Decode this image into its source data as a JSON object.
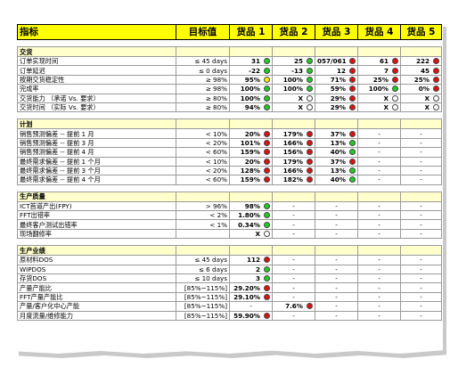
{
  "header": {
    "indicator": "指标",
    "target": "目标值",
    "goods": [
      "货品 1",
      "货品 2",
      "货品 3",
      "货品 4",
      "货品 5"
    ]
  },
  "sections": [
    {
      "title": "交货",
      "rows": [
        {
          "label": "订单实现时间",
          "target": "≤ 45 days",
          "cells": [
            {
              "v": "31",
              "s": "green"
            },
            {
              "v": "25",
              "s": "green"
            },
            {
              "v": "057/061",
              "s": "red"
            },
            {
              "v": "61",
              "s": "red"
            },
            {
              "v": "222",
              "s": "red"
            }
          ]
        },
        {
          "label": "订单延迟",
          "target": "≤ 0 days",
          "cells": [
            {
              "v": "-22",
              "s": "green"
            },
            {
              "v": "-13",
              "s": "green"
            },
            {
              "v": "12",
              "s": "red"
            },
            {
              "v": "7",
              "s": "red"
            },
            {
              "v": "45",
              "s": "red"
            }
          ]
        },
        {
          "label": "按期交货稳定性",
          "target": "≥ 98%",
          "cells": [
            {
              "v": "95%",
              "s": "yellow"
            },
            {
              "v": "100%",
              "s": "green"
            },
            {
              "v": "71%",
              "s": "red"
            },
            {
              "v": "25%",
              "s": "red"
            },
            {
              "v": "25%",
              "s": "red"
            }
          ]
        },
        {
          "label": "完成率",
          "target": "≥ 98%",
          "cells": [
            {
              "v": "100%",
              "s": "green"
            },
            {
              "v": "100%",
              "s": "green"
            },
            {
              "v": "59%",
              "s": "red"
            },
            {
              "v": "100%",
              "s": "green"
            },
            {
              "v": "0%",
              "s": "red"
            }
          ]
        },
        {
          "label": "交货能力 （承诺 Vs. 要求）",
          "target": "≥ 80%",
          "cells": [
            {
              "v": "100%",
              "s": "green"
            },
            {
              "v": "X",
              "s": "empty"
            },
            {
              "v": "29%",
              "s": "red"
            },
            {
              "v": "X",
              "s": "empty"
            },
            {
              "v": "X",
              "s": "empty"
            }
          ]
        },
        {
          "label": "交货时间 （实际 Vs. 要求）",
          "target": "≥ 80%",
          "cells": [
            {
              "v": "94%",
              "s": "green"
            },
            {
              "v": "X",
              "s": "empty"
            },
            {
              "v": "29%",
              "s": "red"
            },
            {
              "v": "X",
              "s": "empty"
            },
            {
              "v": "X",
              "s": "empty"
            }
          ]
        }
      ]
    },
    {
      "title": "计划",
      "rows": [
        {
          "label": "销售预测偏差 -- 提前 1 月",
          "target": "< 10%",
          "cells": [
            {
              "v": "20%",
              "s": "red"
            },
            {
              "v": "179%",
              "s": "red"
            },
            {
              "v": "37%",
              "s": "red"
            },
            {
              "v": "-",
              "s": ""
            },
            {
              "v": "-",
              "s": ""
            }
          ]
        },
        {
          "label": "销售预测偏差 -- 提前 3 月",
          "target": "< 20%",
          "cells": [
            {
              "v": "101%",
              "s": "red"
            },
            {
              "v": "166%",
              "s": "red"
            },
            {
              "v": "13%",
              "s": "green"
            },
            {
              "v": "-",
              "s": ""
            },
            {
              "v": "-",
              "s": ""
            }
          ]
        },
        {
          "label": "销售预测偏差 -- 提前 4 月",
          "target": "< 60%",
          "cells": [
            {
              "v": "159%",
              "s": "red"
            },
            {
              "v": "156%",
              "s": "red"
            },
            {
              "v": "40%",
              "s": "green"
            },
            {
              "v": "-",
              "s": ""
            },
            {
              "v": "-",
              "s": ""
            }
          ]
        },
        {
          "label": "最终需求偏差 -- 提前 1 个月",
          "target": "< 10%",
          "cells": [
            {
              "v": "20%",
              "s": "red"
            },
            {
              "v": "179%",
              "s": "red"
            },
            {
              "v": "37%",
              "s": "red"
            },
            {
              "v": "-",
              "s": ""
            },
            {
              "v": "-",
              "s": ""
            }
          ]
        },
        {
          "label": "最终需求偏差 -- 提前 3 个月",
          "target": "< 20%",
          "cells": [
            {
              "v": "128%",
              "s": "red"
            },
            {
              "v": "166%",
              "s": "red"
            },
            {
              "v": "13%",
              "s": "green"
            },
            {
              "v": "-",
              "s": ""
            },
            {
              "v": "-",
              "s": ""
            }
          ]
        },
        {
          "label": "最终需求偏差 -- 提前 4 个月",
          "target": "< 60%",
          "cells": [
            {
              "v": "159%",
              "s": "red"
            },
            {
              "v": "182%",
              "s": "red"
            },
            {
              "v": "40%",
              "s": "green"
            },
            {
              "v": "-",
              "s": ""
            },
            {
              "v": "-",
              "s": ""
            }
          ]
        }
      ]
    },
    {
      "title": "生产质量",
      "rows": [
        {
          "label": "ICT首道产出(FPY)",
          "target": "> 96%",
          "cells": [
            {
              "v": "98%",
              "s": "green"
            },
            {
              "v": "-",
              "s": ""
            },
            {
              "v": "-",
              "s": ""
            },
            {
              "v": "-",
              "s": ""
            },
            {
              "v": "-",
              "s": ""
            }
          ]
        },
        {
          "label": "FFT出错率",
          "target": "< 2%",
          "cells": [
            {
              "v": "1.80%",
              "s": "green"
            },
            {
              "v": "-",
              "s": ""
            },
            {
              "v": "-",
              "s": ""
            },
            {
              "v": "-",
              "s": ""
            },
            {
              "v": "-",
              "s": ""
            }
          ]
        },
        {
          "label": "最终客户测试出错率",
          "target": "< 1%",
          "cells": [
            {
              "v": "0.34%",
              "s": "green"
            },
            {
              "v": "-",
              "s": ""
            },
            {
              "v": "-",
              "s": ""
            },
            {
              "v": "-",
              "s": ""
            },
            {
              "v": "-",
              "s": ""
            }
          ]
        },
        {
          "label": "现场翻修率",
          "target": "",
          "cells": [
            {
              "v": "X",
              "s": "empty"
            },
            {
              "v": "-",
              "s": ""
            },
            {
              "v": "-",
              "s": ""
            },
            {
              "v": "-",
              "s": ""
            },
            {
              "v": "-",
              "s": ""
            }
          ]
        }
      ]
    },
    {
      "title": "生产业绩",
      "rows": [
        {
          "label": "原材料DOS",
          "target": "≤ 45 days",
          "cells": [
            {
              "v": "112",
              "s": "red"
            },
            {
              "v": "-",
              "s": ""
            },
            {
              "v": "-",
              "s": ""
            },
            {
              "v": "-",
              "s": ""
            },
            {
              "v": "-",
              "s": ""
            }
          ]
        },
        {
          "label": "WIPDOS",
          "target": "≤ 6 days",
          "cells": [
            {
              "v": "2",
              "s": "green"
            },
            {
              "v": "-",
              "s": ""
            },
            {
              "v": "-",
              "s": ""
            },
            {
              "v": "-",
              "s": ""
            },
            {
              "v": "-",
              "s": ""
            }
          ]
        },
        {
          "label": "存货DOS",
          "target": "≤ 10 days",
          "cells": [
            {
              "v": "3",
              "s": "green"
            },
            {
              "v": "-",
              "s": ""
            },
            {
              "v": "-",
              "s": ""
            },
            {
              "v": "-",
              "s": ""
            },
            {
              "v": "-",
              "s": ""
            }
          ]
        },
        {
          "label": "产量产能比",
          "target": "[85%~115%]",
          "cells": [
            {
              "v": "29.20%",
              "s": "red"
            },
            {
              "v": "-",
              "s": ""
            },
            {
              "v": "-",
              "s": ""
            },
            {
              "v": "-",
              "s": ""
            },
            {
              "v": "-",
              "s": ""
            }
          ]
        },
        {
          "label": "FFT产量产能比",
          "target": "[85%~115%]",
          "cells": [
            {
              "v": "29.10%",
              "s": "red"
            },
            {
              "v": "-",
              "s": ""
            },
            {
              "v": "-",
              "s": ""
            },
            {
              "v": "-",
              "s": ""
            },
            {
              "v": "-",
              "s": ""
            }
          ]
        },
        {
          "label": "产量/客户化中心产能",
          "target": "[85%~115%]",
          "cells": [
            {
              "v": "-",
              "s": ""
            },
            {
              "v": "7.6%",
              "s": "red"
            },
            {
              "v": "-",
              "s": ""
            },
            {
              "v": "-",
              "s": ""
            },
            {
              "v": "-",
              "s": ""
            }
          ]
        },
        {
          "label": "月度流量/维修能力",
          "target": "[85%~115%]",
          "cells": [
            {
              "v": "59.90%",
              "s": "red"
            },
            {
              "v": "-",
              "s": ""
            },
            {
              "v": "-",
              "s": ""
            },
            {
              "v": "-",
              "s": ""
            },
            {
              "v": "-",
              "s": ""
            }
          ]
        }
      ]
    }
  ]
}
